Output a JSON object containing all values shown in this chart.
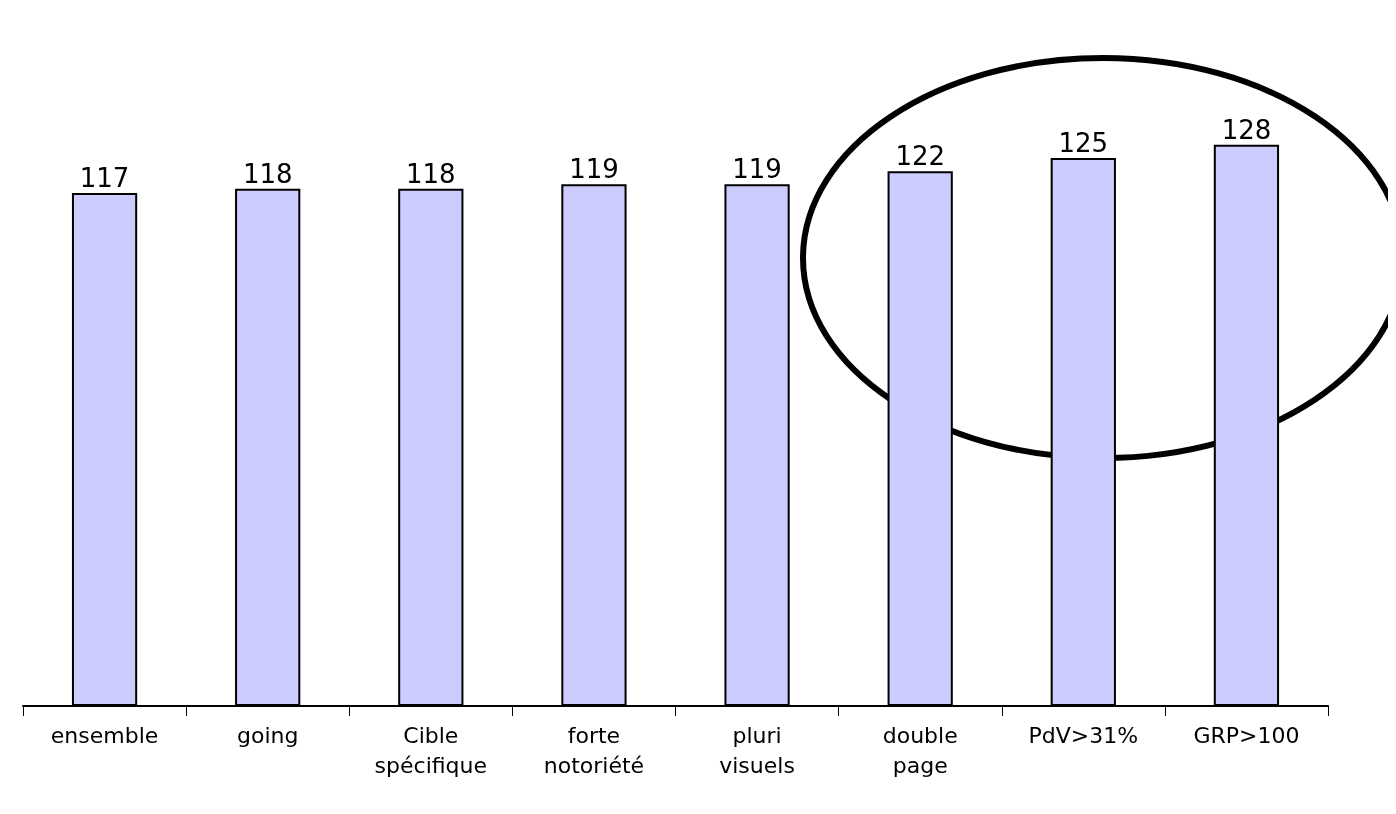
{
  "chart_data": {
    "type": "bar",
    "categories": [
      "ensemble",
      "going",
      "Cible spécifique",
      "forte notoriété",
      "pluri visuels",
      "double page",
      "PdV>31%",
      "GRP>100"
    ],
    "values": [
      117,
      118,
      118,
      119,
      119,
      122,
      125,
      128
    ],
    "color": "#ccccff",
    "data_labels": true
  }
}
